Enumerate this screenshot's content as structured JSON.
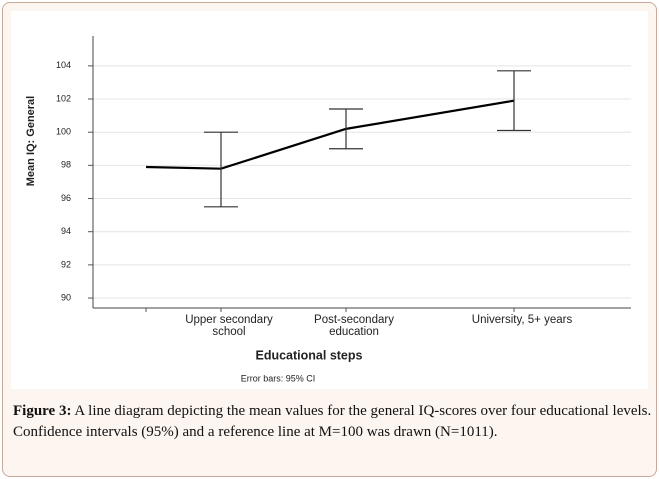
{
  "chart_data": {
    "type": "line",
    "y_label": "Mean IQ: General",
    "x_label": "Educational steps",
    "note": "Error bars: 95% CI",
    "categories": [
      null,
      "Upper secondary school",
      "Post-secondary education",
      "University, 5+ years"
    ],
    "values": [
      97.9,
      97.8,
      100.2,
      101.9
    ],
    "ci_low": [
      null,
      95.5,
      99.0,
      100.1
    ],
    "ci_high": [
      null,
      100.0,
      101.4,
      103.7
    ],
    "color": "#000000",
    "ylim": [
      89.4,
      105.8
    ],
    "yticks": [
      90,
      92,
      94,
      96,
      98,
      100,
      102,
      104
    ],
    "grid": true
  },
  "caption_label": "Figure 3:",
  "caption": "A line diagram depicting the mean values for the general IQ-scores over four educational levels. Confidence intervals (95%) and a reference line at M=100 was drawn (N=1011)."
}
